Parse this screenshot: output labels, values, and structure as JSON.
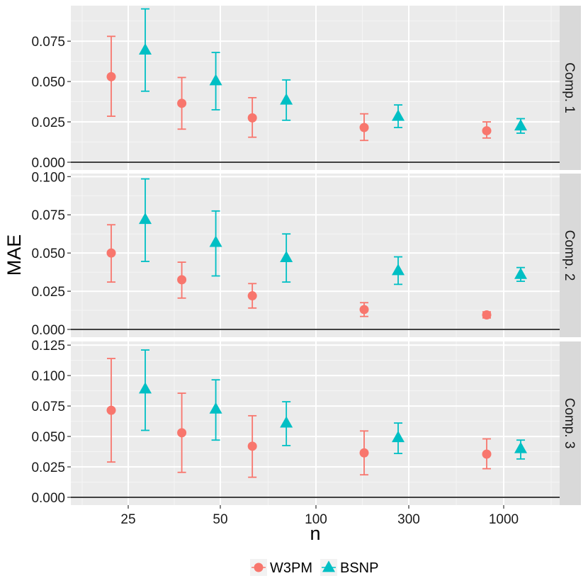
{
  "chart_data": {
    "type": "scatter",
    "subtype": "point-with-errorbars",
    "xlabel": "n",
    "ylabel": "MAE",
    "x_scale": "log",
    "x_ticks": [
      25,
      50,
      100,
      300,
      1000
    ],
    "x_tick_labels": [
      "25",
      "50",
      "100",
      "300",
      "1000"
    ],
    "x_groups": [
      "25",
      "50",
      "100",
      "300",
      "1000"
    ],
    "legend": {
      "position": "bottom",
      "items": [
        {
          "name": "W3PM",
          "color": "#F8766D",
          "shape": "circle"
        },
        {
          "name": "BSNP",
          "color": "#00BFC4",
          "shape": "triangle"
        }
      ]
    },
    "panels": [
      {
        "strip": "Comp. 1",
        "ylim": [
          0,
          0.097
        ],
        "y_ticks": [
          0.0,
          0.025,
          0.05,
          0.075
        ],
        "y_tick_labels": [
          "0.000",
          "0.025",
          "0.050",
          "0.075"
        ],
        "series": [
          {
            "name": "W3PM",
            "values": [
              0.053,
              0.0365,
              0.0275,
              0.0215,
              0.0195
            ],
            "lower": [
              0.0285,
              0.0205,
              0.0155,
              0.0135,
              0.015
            ],
            "upper": [
              0.078,
              0.0525,
              0.04,
              0.03,
              0.025
            ]
          },
          {
            "name": "BSNP",
            "values": [
              0.0695,
              0.0505,
              0.0385,
              0.0285,
              0.0225
            ],
            "lower": [
              0.044,
              0.0325,
              0.026,
              0.0215,
              0.018
            ],
            "upper": [
              0.095,
              0.068,
              0.051,
              0.0355,
              0.027
            ]
          }
        ]
      },
      {
        "strip": "Comp. 2",
        "ylim": [
          0,
          0.102
        ],
        "y_ticks": [
          0.0,
          0.025,
          0.05,
          0.075,
          0.1
        ],
        "y_tick_labels": [
          "0.000",
          "0.025",
          "0.050",
          "0.075",
          "0.100"
        ],
        "series": [
          {
            "name": "W3PM",
            "values": [
              0.05,
              0.0325,
              0.022,
              0.013,
              0.0095
            ],
            "lower": [
              0.031,
              0.0205,
              0.014,
              0.0085,
              0.0075
            ],
            "upper": [
              0.0685,
              0.044,
              0.03,
              0.0175,
              0.0115
            ]
          },
          {
            "name": "BSNP",
            "values": [
              0.072,
              0.057,
              0.047,
              0.0385,
              0.036
            ],
            "lower": [
              0.0445,
              0.035,
              0.031,
              0.0295,
              0.0315
            ],
            "upper": [
              0.0985,
              0.0775,
              0.0625,
              0.0475,
              0.0405
            ]
          }
        ]
      },
      {
        "strip": "Comp. 3",
        "ylim": [
          0,
          0.128
        ],
        "y_ticks": [
          0.0,
          0.025,
          0.05,
          0.075,
          0.1,
          0.125
        ],
        "y_tick_labels": [
          "0.000",
          "0.025",
          "0.050",
          "0.075",
          "0.100",
          "0.125"
        ],
        "series": [
          {
            "name": "W3PM",
            "values": [
              0.0715,
              0.053,
              0.042,
              0.0365,
              0.0355
            ],
            "lower": [
              0.029,
              0.0205,
              0.0165,
              0.0185,
              0.0235
            ],
            "upper": [
              0.114,
              0.0855,
              0.067,
              0.0545,
              0.048
            ]
          },
          {
            "name": "BSNP",
            "values": [
              0.089,
              0.0725,
              0.061,
              0.049,
              0.04
            ],
            "lower": [
              0.055,
              0.047,
              0.0425,
              0.036,
              0.0315
            ],
            "upper": [
              0.121,
              0.0965,
              0.0785,
              0.061,
              0.047
            ]
          }
        ]
      }
    ]
  }
}
